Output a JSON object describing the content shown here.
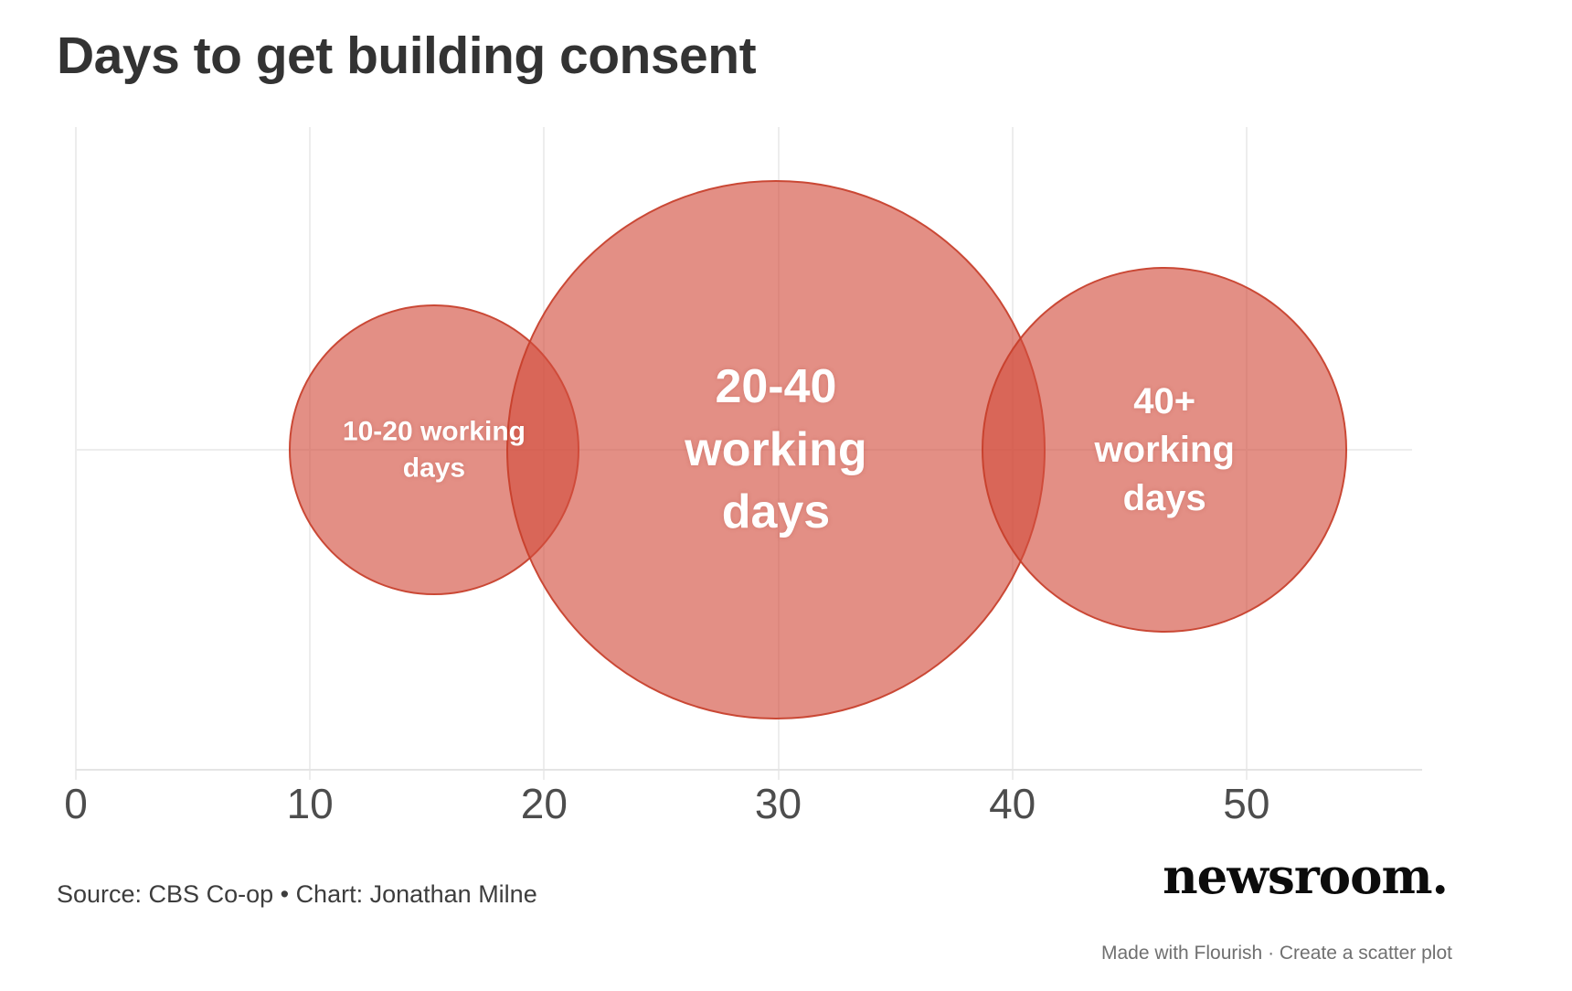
{
  "header": {
    "title": "Days to get building consent"
  },
  "footer": {
    "source": "Source: CBS Co-op • Chart: Jonathan Milne",
    "logo": "newsroom.",
    "credit": "Made with Flourish · Create a scatter plot"
  },
  "chart_data": {
    "type": "scatter",
    "title": "Days to get building consent",
    "xlabel": "",
    "ylabel": "",
    "x_ticks": [
      0,
      10,
      20,
      30,
      40,
      50
    ],
    "x_range": [
      0,
      57.5
    ],
    "grid": true,
    "legend": false,
    "points": [
      {
        "label": "10-20 working days",
        "label_lines": [
          "10-20 working",
          "days"
        ],
        "x": 15.3,
        "y": 0,
        "radius_x_units": 6.2
      },
      {
        "label": "20-40 working days",
        "label_lines": [
          "20-40",
          "working",
          "days"
        ],
        "x": 29.9,
        "y": 0,
        "radius_x_units": 11.5
      },
      {
        "label": "40+ working days",
        "label_lines": [
          "40+",
          "working",
          "days"
        ],
        "x": 46.5,
        "y": 0,
        "radius_x_units": 7.8
      }
    ],
    "colors": {
      "bubble_fill": "#D24E3D",
      "bubble_fill_opacity": 0.63,
      "bubble_stroke": "#C63C28",
      "bubble_label_text": "#FFFFFF",
      "gridline": "#EDEDED",
      "axis_line": "#E4E4E4",
      "tick_text": "#4D4D4D",
      "title_text": "#333333"
    }
  }
}
